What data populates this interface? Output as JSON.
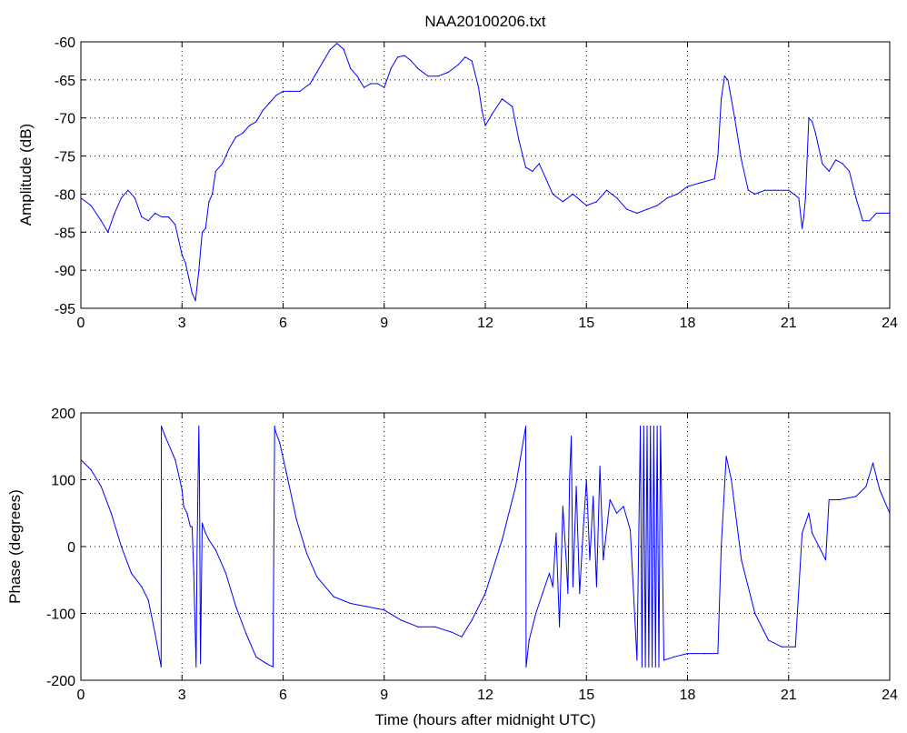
{
  "chart_data": [
    {
      "type": "line",
      "title": "NAA20100206.txt",
      "xlabel": "",
      "ylabel": "Amplitude (dB)",
      "xlim": [
        0,
        24
      ],
      "ylim": [
        -95,
        -60
      ],
      "xticks": [
        "0",
        "3",
        "6",
        "9",
        "12",
        "15",
        "18",
        "21",
        "24"
      ],
      "yticks": [
        "-60",
        "-65",
        "-70",
        "-75",
        "-80",
        "-85",
        "-90",
        "-95"
      ],
      "grid": true,
      "color": "#0000ff",
      "x": [
        0,
        0.3,
        0.6,
        0.8,
        1.0,
        1.2,
        1.4,
        1.6,
        1.8,
        2.0,
        2.2,
        2.4,
        2.6,
        2.8,
        2.9,
        3.0,
        3.1,
        3.2,
        3.3,
        3.4,
        3.5,
        3.6,
        3.7,
        3.8,
        3.9,
        4.0,
        4.2,
        4.4,
        4.6,
        4.8,
        5.0,
        5.2,
        5.4,
        5.6,
        5.8,
        6.0,
        6.2,
        6.5,
        6.8,
        7.0,
        7.2,
        7.4,
        7.6,
        7.8,
        8.0,
        8.2,
        8.4,
        8.6,
        8.8,
        9.0,
        9.2,
        9.4,
        9.6,
        9.8,
        10.0,
        10.3,
        10.6,
        10.9,
        11.2,
        11.4,
        11.6,
        11.8,
        11.9,
        12.0,
        12.2,
        12.5,
        12.8,
        13.0,
        13.2,
        13.4,
        13.6,
        13.8,
        14.0,
        14.3,
        14.6,
        15.0,
        15.3,
        15.6,
        15.9,
        16.2,
        16.5,
        16.8,
        17.1,
        17.4,
        17.7,
        18.0,
        18.4,
        18.8,
        18.9,
        19.0,
        19.1,
        19.2,
        19.4,
        19.6,
        19.8,
        20.0,
        20.3,
        20.6,
        21.0,
        21.3,
        21.4,
        21.45,
        21.5,
        21.6,
        21.7,
        21.8,
        22.0,
        22.2,
        22.4,
        22.6,
        22.8,
        23.0,
        23.2,
        23.4,
        23.6,
        23.8,
        24.0
      ],
      "y": [
        -80.5,
        -81.5,
        -83.5,
        -85,
        -82.5,
        -80.5,
        -79.5,
        -80.5,
        -83,
        -83.5,
        -82.5,
        -83,
        -83,
        -84,
        -86,
        -88,
        -89,
        -91,
        -93,
        -94,
        -90,
        -85,
        -84.5,
        -81,
        -80,
        -77,
        -76,
        -74,
        -72.5,
        -72,
        -71,
        -70.5,
        -69,
        -68,
        -67,
        -66.5,
        -66.5,
        -66.5,
        -65.5,
        -64,
        -62.5,
        -61,
        -60.2,
        -61,
        -63.5,
        -64.5,
        -66,
        -65.5,
        -65.5,
        -66,
        -63.5,
        -62,
        -61.8,
        -62.5,
        -63.5,
        -64.5,
        -64.5,
        -64,
        -63,
        -62,
        -62.5,
        -66,
        -69,
        -71,
        -69.5,
        -67.5,
        -68.5,
        -73,
        -76.5,
        -77,
        -76,
        -78,
        -80,
        -81,
        -80,
        -81.5,
        -81,
        -79.5,
        -80.5,
        -82,
        -82.5,
        -82,
        -81.5,
        -80.5,
        -80,
        -79,
        -78.5,
        -78,
        -75,
        -67.5,
        -64.5,
        -65,
        -70,
        -75.5,
        -79.5,
        -80,
        -79.5,
        -79.5,
        -79.5,
        -80.5,
        -84.5,
        -83,
        -80.5,
        -70,
        -70.5,
        -72,
        -76,
        -77,
        -75.5,
        -76,
        -77,
        -80.5,
        -83.5,
        -83.5,
        -82.5,
        -82.5,
        -82.5
      ]
    },
    {
      "type": "line",
      "title": "",
      "xlabel": "Time (hours after midnight UTC)",
      "ylabel": "Phase (degrees)",
      "xlim": [
        0,
        24
      ],
      "ylim": [
        -200,
        200
      ],
      "xticks": [
        "0",
        "3",
        "6",
        "9",
        "12",
        "15",
        "18",
        "21",
        "24"
      ],
      "yticks": [
        "200",
        "100",
        "0",
        "-100",
        "-200"
      ],
      "grid": true,
      "color": "#0000ff",
      "x": [
        0,
        0.3,
        0.6,
        0.9,
        1.2,
        1.5,
        1.8,
        2.0,
        2.2,
        2.38,
        2.39,
        2.5,
        2.8,
        3.0,
        3.05,
        3.15,
        3.25,
        3.3,
        3.35,
        3.38,
        3.42,
        3.45,
        3.5,
        3.52,
        3.55,
        3.6,
        3.7,
        3.8,
        4.0,
        4.3,
        4.6,
        4.9,
        5.2,
        5.5,
        5.7,
        5.75,
        5.76,
        5.9,
        6.1,
        6.4,
        6.7,
        7.0,
        7.5,
        8.0,
        8.5,
        9.0,
        9.5,
        10.0,
        10.5,
        11.0,
        11.3,
        11.6,
        12.0,
        12.5,
        12.9,
        13.2,
        13.21,
        13.3,
        13.5,
        13.7,
        13.9,
        14.0,
        14.1,
        14.2,
        14.3,
        14.4,
        14.45,
        14.5,
        14.55,
        14.6,
        14.7,
        14.8,
        14.9,
        15.0,
        15.1,
        15.2,
        15.3,
        15.4,
        15.5,
        15.7,
        15.9,
        16.1,
        16.3,
        16.5,
        16.6,
        16.65,
        16.7,
        16.75,
        16.8,
        16.85,
        16.9,
        16.95,
        17.0,
        17.05,
        17.1,
        17.15,
        17.2,
        17.3,
        17.6,
        18.0,
        18.5,
        18.9,
        19.0,
        19.15,
        19.3,
        19.6,
        20.0,
        20.4,
        20.8,
        21.2,
        21.4,
        21.6,
        21.7,
        21.9,
        22.1,
        22.2,
        22.21,
        22.5,
        23.0,
        23.3,
        23.5,
        23.7,
        24.0
      ],
      "y": [
        130,
        115,
        90,
        50,
        0,
        -40,
        -60,
        -80,
        -130,
        -180,
        180,
        165,
        130,
        85,
        60,
        50,
        30,
        30,
        -40,
        -100,
        -180,
        0,
        180,
        100,
        -175,
        35,
        20,
        10,
        -5,
        -40,
        -90,
        -130,
        -165,
        -175,
        -180,
        180,
        175,
        155,
        110,
        40,
        -10,
        -45,
        -75,
        -85,
        -90,
        -95,
        -110,
        -120,
        -120,
        -128,
        -135,
        -110,
        -70,
        10,
        90,
        180,
        -180,
        -140,
        -100,
        -70,
        -40,
        -60,
        20,
        -120,
        60,
        -20,
        -70,
        100,
        165,
        -60,
        90,
        -70,
        20,
        100,
        -20,
        75,
        -60,
        120,
        -20,
        70,
        50,
        60,
        25,
        -170,
        180,
        -180,
        180,
        -180,
        180,
        -180,
        180,
        -180,
        180,
        -180,
        180,
        -180,
        180,
        -170,
        -165,
        -160,
        -160,
        -160,
        0,
        135,
        100,
        -20,
        -100,
        -140,
        -150,
        -150,
        20,
        50,
        20,
        0,
        -20,
        70,
        70,
        70,
        75,
        90,
        125,
        85,
        50
      ]
    }
  ]
}
